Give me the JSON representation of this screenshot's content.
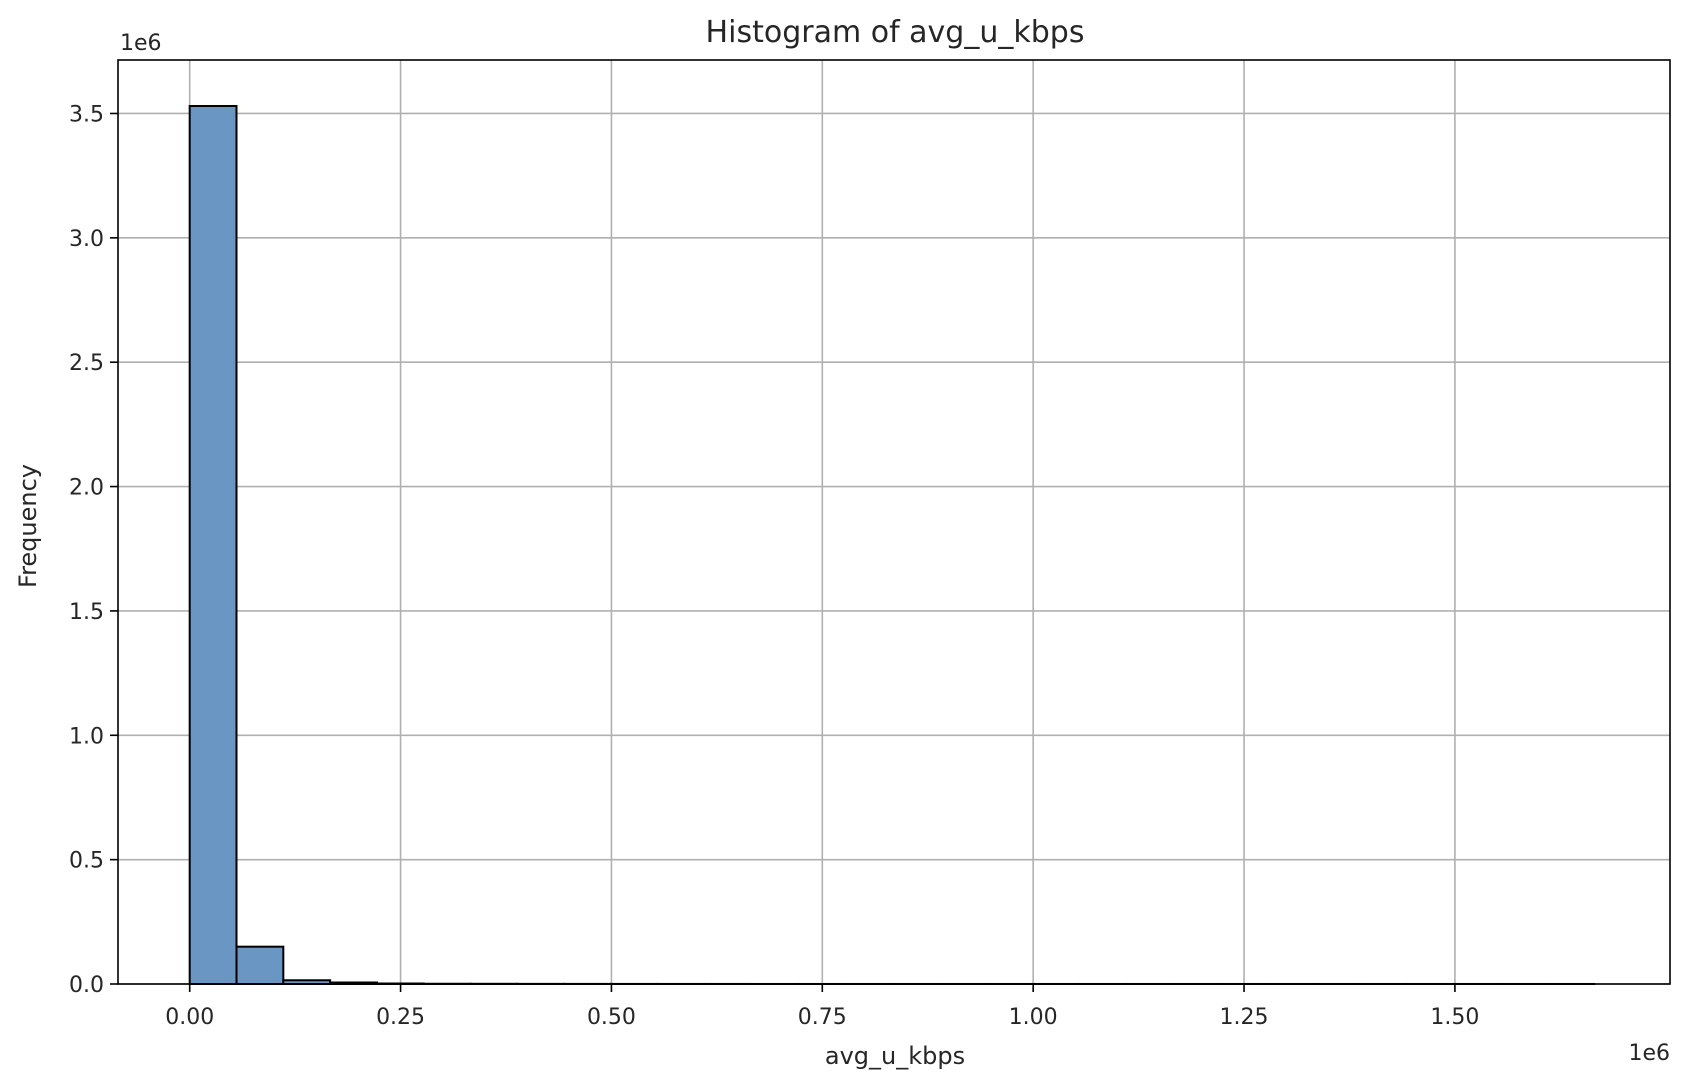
{
  "chart_data": {
    "type": "histogram",
    "title": "Histogram of avg_u_kbps",
    "xlabel": "avg_u_kbps",
    "ylabel": "Frequency",
    "x_multiplier_label": "1e6",
    "y_multiplier_label": "1e6",
    "x_multiplier": 1000000,
    "y_multiplier": 1000000,
    "xlim": [
      -0.085,
      1.755
    ],
    "ylim": [
      0,
      3.715
    ],
    "x_ticks": [
      0.0,
      0.25,
      0.5,
      0.75,
      1.0,
      1.25,
      1.5
    ],
    "x_tick_labels": [
      "0.00",
      "0.25",
      "0.50",
      "0.75",
      "1.00",
      "1.25",
      "1.50"
    ],
    "y_ticks": [
      0.0,
      0.5,
      1.0,
      1.5,
      2.0,
      2.5,
      3.0,
      3.5
    ],
    "y_tick_labels": [
      "0.0",
      "0.5",
      "1.0",
      "1.5",
      "2.0",
      "2.5",
      "3.0",
      "3.5"
    ],
    "bin_edges": [
      0.0,
      0.0555,
      0.111,
      0.1665,
      0.222,
      0.2775,
      0.333,
      0.3885,
      0.444,
      0.4995,
      0.555,
      0.6105,
      0.666,
      0.7215,
      0.777,
      0.8325,
      0.888,
      0.9435,
      0.999,
      1.0545,
      1.11,
      1.1655,
      1.221,
      1.2765,
      1.332,
      1.3875,
      1.443,
      1.4985,
      1.554,
      1.6095,
      1.665
    ],
    "values": [
      3.53,
      0.15,
      0.015,
      0.006,
      0.002,
      0.001,
      0.0008,
      0.0005,
      0.0004,
      0.0003,
      0.0002,
      0.0002,
      0.0001,
      0.0001,
      0.0001,
      0.0001,
      0.0001,
      0.0001,
      0.0001,
      0.0001,
      0.0001,
      0.0001,
      0.0001,
      0.0001,
      0.0001,
      0.0001,
      0.0001,
      0.0001,
      0.0001,
      0.0001
    ],
    "grid": true,
    "bar_color": "#6a96c4",
    "edge_color": "#000000"
  }
}
